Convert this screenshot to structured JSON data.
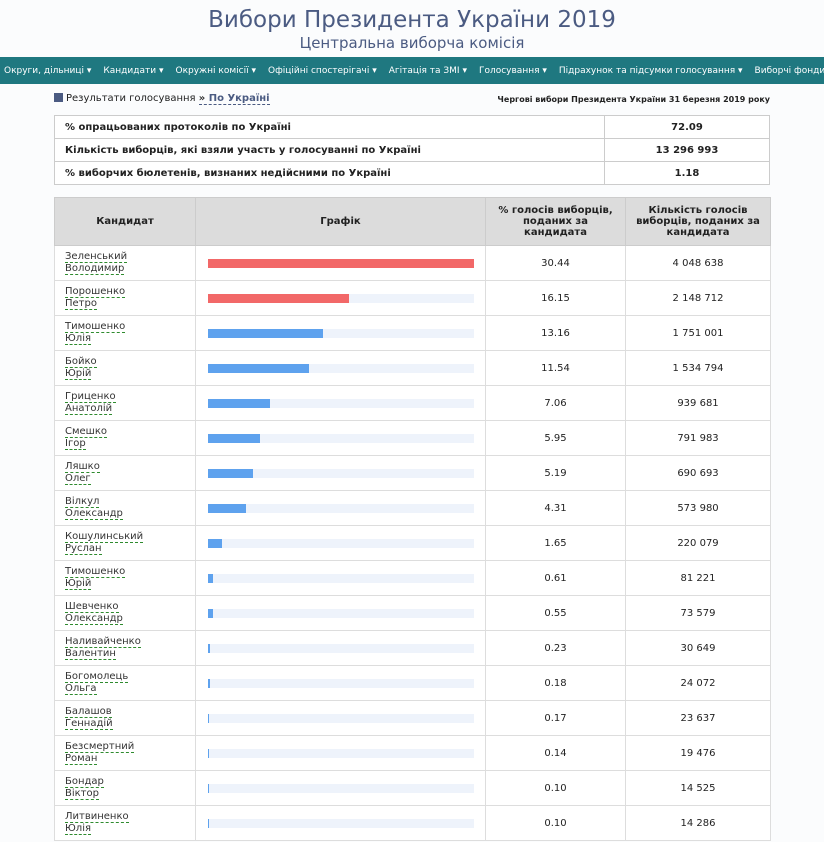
{
  "header": {
    "title": "Вибори Президента України 2019",
    "subtitle": "Центральна виборча комісія"
  },
  "nav": [
    "Округи, дільниці",
    "Кандидати",
    "Окружні комісії",
    "Офіційні спостерігачі",
    "Агітація та ЗМІ",
    "Голосування",
    "Підрахунок та підсумки голосування",
    "Виборчі фонди"
  ],
  "breadcrumb": {
    "label": "Результати голосування",
    "link": "По Україні",
    "election": "Чергові вибори Президента України 31 березня 2019 року"
  },
  "summary": [
    {
      "label": "% опрацьованих протоколів по Україні",
      "value": 72.09
    },
    {
      "label": "Кількість виборців, які взяли участь у голосуванні по Україні",
      "value": "13 296 993"
    },
    {
      "label": "% виборчих бюлетенів, визнаних недійсними по Україні",
      "value": 1.18
    }
  ],
  "table": {
    "columns": [
      "Кандидат",
      "Графік",
      "% голосів виборців, поданих за кандидата",
      "Кількість голосів виборців, поданих за кандидата"
    ],
    "rows": [
      {
        "surname": "Зеленський",
        "name": "Володимир",
        "percent": 30.44,
        "votes": "4 048 638",
        "color": "#f26868"
      },
      {
        "surname": "Порошенко",
        "name": "Петро",
        "percent": 16.15,
        "votes": "2 148 712",
        "color": "#f26868"
      },
      {
        "surname": "Тимошенко",
        "name": "Юлія",
        "percent": 13.16,
        "votes": "1 751 001",
        "color": "#5ea2ee"
      },
      {
        "surname": "Бойко",
        "name": "Юрій",
        "percent": 11.54,
        "votes": "1 534 794",
        "color": "#5ea2ee"
      },
      {
        "surname": "Гриценко",
        "name": "Анатолій",
        "percent": 7.06,
        "votes": "939 681",
        "color": "#5ea2ee"
      },
      {
        "surname": "Смешко",
        "name": "Ігор",
        "percent": 5.95,
        "votes": "791 983",
        "color": "#5ea2ee"
      },
      {
        "surname": "Ляшко",
        "name": "Олег",
        "percent": 5.19,
        "votes": "690 693",
        "color": "#5ea2ee"
      },
      {
        "surname": "Вілкул",
        "name": "Олександр",
        "percent": 4.31,
        "votes": "573 980",
        "color": "#5ea2ee"
      },
      {
        "surname": "Кошулинський",
        "name": "Руслан",
        "percent": 1.65,
        "votes": "220 079",
        "color": "#5ea2ee"
      },
      {
        "surname": "Тимошенко",
        "name": "Юрій",
        "percent": 0.61,
        "votes": "81 221",
        "color": "#5ea2ee"
      },
      {
        "surname": "Шевченко",
        "name": "Олександр",
        "percent": 0.55,
        "votes": "73 579",
        "color": "#5ea2ee"
      },
      {
        "surname": "Наливайченко",
        "name": "Валентин",
        "percent": 0.23,
        "votes": "30 649",
        "color": "#5ea2ee"
      },
      {
        "surname": "Богомолець",
        "name": "Ольга",
        "percent": 0.18,
        "votes": "24 072",
        "color": "#5ea2ee"
      },
      {
        "surname": "Балашов",
        "name": "Геннадій",
        "percent": 0.17,
        "votes": "23 637",
        "color": "#5ea2ee"
      },
      {
        "surname": "Безсмертний",
        "name": "Роман",
        "percent": 0.14,
        "votes": "19 476",
        "color": "#5ea2ee"
      },
      {
        "surname": "Бондар",
        "name": "Віктор",
        "percent": {
          "value": 0.1,
          "label": "0.10"
        },
        "votes": "14 525",
        "color": "#5ea2ee"
      },
      {
        "surname": "Литвиненко",
        "name": "Юлія",
        "percent": {
          "value": 0.1,
          "label": "0.10"
        },
        "votes": "14 286",
        "color": "#5ea2ee"
      }
    ]
  }
}
